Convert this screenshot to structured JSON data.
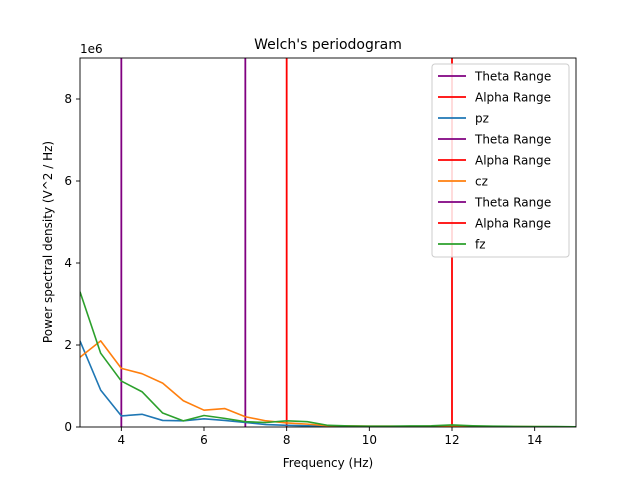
{
  "chart_data": {
    "type": "line",
    "title": "Welch's periodogram",
    "xlabel": "Frequency (Hz)",
    "ylabel": "Power spectral density (V^2 / Hz)",
    "y_offset_label": "1e6",
    "xlim": [
      3,
      15
    ],
    "ylim": [
      0,
      9000000
    ],
    "xticks": [
      4,
      6,
      8,
      10,
      12,
      14
    ],
    "yticks": [
      0,
      2000000,
      4000000,
      6000000,
      8000000
    ],
    "ytick_labels": [
      "0",
      "2",
      "4",
      "6",
      "8"
    ],
    "grid": false,
    "legend_position": "top-right",
    "x": [
      3.0,
      3.5,
      4.0,
      4.5,
      5.0,
      5.5,
      6.0,
      6.5,
      7.0,
      7.5,
      8.0,
      8.5,
      9.0,
      9.5,
      10.0,
      10.5,
      11.0,
      11.5,
      12.0,
      12.5,
      13.0,
      13.5,
      14.0,
      14.5,
      15.0
    ],
    "series": [
      {
        "name": "pz",
        "color": "#1f77b4",
        "values": [
          2100000,
          900000,
          270000,
          310000,
          160000,
          150000,
          200000,
          160000,
          110000,
          60000,
          40000,
          30000,
          20000,
          15000,
          15000,
          12000,
          10000,
          10000,
          10000,
          8000,
          8000,
          6000,
          5000,
          5000,
          4000
        ]
      },
      {
        "name": "cz",
        "color": "#ff7f0e",
        "values": [
          1700000,
          2100000,
          1430000,
          1300000,
          1070000,
          640000,
          410000,
          450000,
          250000,
          150000,
          100000,
          70000,
          30000,
          25000,
          20000,
          20000,
          15000,
          20000,
          20000,
          15000,
          10000,
          10000,
          8000,
          6000,
          5000
        ]
      },
      {
        "name": "fz",
        "color": "#2ca02c",
        "values": [
          3300000,
          1800000,
          1120000,
          860000,
          340000,
          150000,
          280000,
          210000,
          130000,
          110000,
          150000,
          130000,
          40000,
          25000,
          20000,
          20000,
          25000,
          30000,
          50000,
          30000,
          20000,
          15000,
          12000,
          10000,
          5000
        ]
      }
    ],
    "vlines": [
      {
        "name": "Theta Range",
        "x": 4,
        "color": "#800080"
      },
      {
        "name": "Theta Range",
        "x": 7,
        "color": "#800080"
      },
      {
        "name": "Alpha Range",
        "x": 8,
        "color": "#ff0000"
      },
      {
        "name": "Alpha Range",
        "x": 12,
        "color": "#ff0000"
      }
    ],
    "legend": [
      {
        "label": "Theta Range",
        "color": "#800080"
      },
      {
        "label": "Alpha Range",
        "color": "#ff0000"
      },
      {
        "label": "pz",
        "color": "#1f77b4"
      },
      {
        "label": "Theta Range",
        "color": "#800080"
      },
      {
        "label": "Alpha Range",
        "color": "#ff0000"
      },
      {
        "label": "cz",
        "color": "#ff7f0e"
      },
      {
        "label": "Theta Range",
        "color": "#800080"
      },
      {
        "label": "Alpha Range",
        "color": "#ff0000"
      },
      {
        "label": "fz",
        "color": "#2ca02c"
      }
    ]
  }
}
